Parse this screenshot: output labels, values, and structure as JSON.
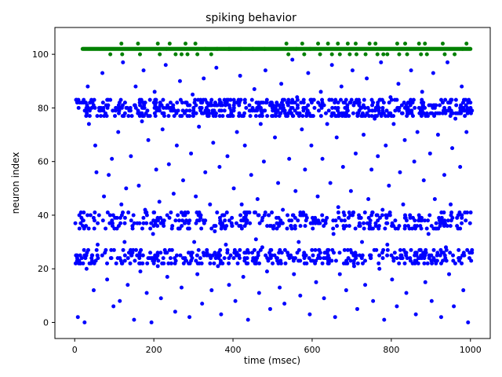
{
  "chart_data": {
    "type": "scatter",
    "title": "spiking behavior",
    "xlabel": "time (msec)",
    "ylabel": "neuron index",
    "xlim": [
      -50,
      1050
    ],
    "ylim": [
      -6,
      110
    ],
    "xticks": [
      0,
      200,
      400,
      600,
      800,
      1000
    ],
    "yticks": [
      0,
      20,
      40,
      60,
      80,
      100
    ],
    "grid": false,
    "legend": "none",
    "series": [
      {
        "color": "#0000ff",
        "marker": "circle",
        "description_points": "sampled spike events",
        "points": [
          [
            8,
            2
          ],
          [
            12,
            35
          ],
          [
            15,
            22
          ],
          [
            18,
            24
          ],
          [
            22,
            38
          ],
          [
            25,
            0
          ],
          [
            28,
            82
          ],
          [
            30,
            20
          ],
          [
            33,
            88
          ],
          [
            36,
            74
          ],
          [
            40,
            40
          ],
          [
            44,
            23
          ],
          [
            48,
            12
          ],
          [
            52,
            66
          ],
          [
            55,
            56
          ],
          [
            58,
            29
          ],
          [
            62,
            80
          ],
          [
            66,
            77
          ],
          [
            70,
            93
          ],
          [
            74,
            47
          ],
          [
            78,
            35
          ],
          [
            82,
            16
          ],
          [
            86,
            55
          ],
          [
            90,
            83
          ],
          [
            94,
            61
          ],
          [
            98,
            6
          ],
          [
            102,
            39
          ],
          [
            105,
            22
          ],
          [
            110,
            71
          ],
          [
            114,
            8
          ],
          [
            118,
            44
          ],
          [
            122,
            97
          ],
          [
            126,
            30
          ],
          [
            130,
            50
          ],
          [
            134,
            14
          ],
          [
            138,
            79
          ],
          [
            142,
            62
          ],
          [
            146,
            26
          ],
          [
            150,
            1
          ],
          [
            154,
            88
          ],
          [
            158,
            37
          ],
          [
            162,
            51
          ],
          [
            166,
            19
          ],
          [
            170,
            75
          ],
          [
            174,
            94
          ],
          [
            178,
            42
          ],
          [
            182,
            11
          ],
          [
            186,
            68
          ],
          [
            190,
            24
          ],
          [
            194,
            0
          ],
          [
            198,
            33
          ],
          [
            202,
            86
          ],
          [
            206,
            57
          ],
          [
            210,
            21
          ],
          [
            214,
            45
          ],
          [
            218,
            9
          ],
          [
            222,
            72
          ],
          [
            226,
            38
          ],
          [
            230,
            96
          ],
          [
            234,
            17
          ],
          [
            238,
            59
          ],
          [
            242,
            80
          ],
          [
            246,
            27
          ],
          [
            250,
            48
          ],
          [
            254,
            4
          ],
          [
            258,
            66
          ],
          [
            262,
            35
          ],
          [
            266,
            90
          ],
          [
            270,
            13
          ],
          [
            274,
            53
          ],
          [
            278,
            78
          ],
          [
            282,
            23
          ],
          [
            286,
            41
          ],
          [
            290,
            2
          ],
          [
            294,
            63
          ],
          [
            298,
            85
          ],
          [
            302,
            30
          ],
          [
            306,
            47
          ],
          [
            310,
            18
          ],
          [
            314,
            73
          ],
          [
            318,
            39
          ],
          [
            322,
            7
          ],
          [
            326,
            91
          ],
          [
            330,
            56
          ],
          [
            334,
            25
          ],
          [
            338,
            81
          ],
          [
            342,
            44
          ],
          [
            346,
            12
          ],
          [
            350,
            67
          ],
          [
            354,
            34
          ],
          [
            358,
            95
          ],
          [
            362,
            21
          ],
          [
            366,
            58
          ],
          [
            370,
            3
          ],
          [
            374,
            77
          ],
          [
            378,
            40
          ],
          [
            382,
            29
          ],
          [
            386,
            62
          ],
          [
            390,
            14
          ],
          [
            394,
            83
          ],
          [
            398,
            36
          ],
          [
            402,
            50
          ],
          [
            406,
            8
          ],
          [
            410,
            71
          ],
          [
            414,
            25
          ],
          [
            418,
            92
          ],
          [
            422,
            44
          ],
          [
            426,
            17
          ],
          [
            430,
            66
          ],
          [
            434,
            38
          ],
          [
            438,
            1
          ],
          [
            442,
            79
          ],
          [
            446,
            55
          ],
          [
            450,
            23
          ],
          [
            454,
            87
          ],
          [
            458,
            31
          ],
          [
            462,
            46
          ],
          [
            466,
            11
          ],
          [
            470,
            74
          ],
          [
            474,
            28
          ],
          [
            478,
            60
          ],
          [
            482,
            94
          ],
          [
            486,
            19
          ],
          [
            490,
            40
          ],
          [
            494,
            5
          ],
          [
            498,
            82
          ],
          [
            502,
            35
          ],
          [
            506,
            69
          ],
          [
            510,
            24
          ],
          [
            514,
            52
          ],
          [
            518,
            13
          ],
          [
            522,
            89
          ],
          [
            526,
            42
          ],
          [
            530,
            7
          ],
          [
            534,
            77
          ],
          [
            538,
            26
          ],
          [
            542,
            61
          ],
          [
            546,
            36
          ],
          [
            550,
            98
          ],
          [
            554,
            18
          ],
          [
            558,
            49
          ],
          [
            562,
            84
          ],
          [
            566,
            30
          ],
          [
            570,
            10
          ],
          [
            574,
            72
          ],
          [
            578,
            40
          ],
          [
            582,
            57
          ],
          [
            586,
            22
          ],
          [
            590,
            93
          ],
          [
            594,
            3
          ],
          [
            598,
            66
          ],
          [
            602,
            37
          ],
          [
            606,
            80
          ],
          [
            610,
            15
          ],
          [
            614,
            47
          ],
          [
            618,
            27
          ],
          [
            622,
            86
          ],
          [
            626,
            61
          ],
          [
            630,
            9
          ],
          [
            634,
            38
          ],
          [
            638,
            74
          ],
          [
            642,
            24
          ],
          [
            646,
            52
          ],
          [
            650,
            96
          ],
          [
            654,
            33
          ],
          [
            658,
            2
          ],
          [
            662,
            69
          ],
          [
            666,
            43
          ],
          [
            670,
            18
          ],
          [
            674,
            88
          ],
          [
            678,
            58
          ],
          [
            682,
            27
          ],
          [
            686,
            12
          ],
          [
            690,
            79
          ],
          [
            694,
            36
          ],
          [
            698,
            49
          ],
          [
            702,
            94
          ],
          [
            706,
            21
          ],
          [
            710,
            63
          ],
          [
            714,
            5
          ],
          [
            718,
            83
          ],
          [
            722,
            39
          ],
          [
            726,
            30
          ],
          [
            730,
            70
          ],
          [
            734,
            14
          ],
          [
            738,
            91
          ],
          [
            742,
            46
          ],
          [
            746,
            25
          ],
          [
            750,
            57
          ],
          [
            754,
            8
          ],
          [
            758,
            76
          ],
          [
            762,
            36
          ],
          [
            766,
            62
          ],
          [
            770,
            20
          ],
          [
            774,
            97
          ],
          [
            778,
            42
          ],
          [
            782,
            1
          ],
          [
            786,
            66
          ],
          [
            790,
            29
          ],
          [
            794,
            51
          ],
          [
            798,
            84
          ],
          [
            802,
            16
          ],
          [
            806,
            74
          ],
          [
            810,
            38
          ],
          [
            814,
            6
          ],
          [
            818,
            89
          ],
          [
            822,
            56
          ],
          [
            826,
            25
          ],
          [
            830,
            44
          ],
          [
            834,
            68
          ],
          [
            838,
            11
          ],
          [
            842,
            80
          ],
          [
            846,
            35
          ],
          [
            850,
            94
          ],
          [
            854,
            22
          ],
          [
            858,
            60
          ],
          [
            862,
            3
          ],
          [
            866,
            71
          ],
          [
            870,
            40
          ],
          [
            874,
            27
          ],
          [
            878,
            86
          ],
          [
            882,
            53
          ],
          [
            886,
            15
          ],
          [
            890,
            78
          ],
          [
            894,
            33
          ],
          [
            898,
            63
          ],
          [
            902,
            8
          ],
          [
            906,
            93
          ],
          [
            910,
            46
          ],
          [
            914,
            23
          ],
          [
            918,
            70
          ],
          [
            922,
            38
          ],
          [
            926,
            2
          ],
          [
            930,
            82
          ],
          [
            934,
            55
          ],
          [
            938,
            28
          ],
          [
            942,
            97
          ],
          [
            946,
            18
          ],
          [
            950,
            44
          ],
          [
            954,
            65
          ],
          [
            958,
            6
          ],
          [
            962,
            76
          ],
          [
            966,
            36
          ],
          [
            970,
            24
          ],
          [
            974,
            58
          ],
          [
            978,
            88
          ],
          [
            982,
            12
          ],
          [
            986,
            41
          ],
          [
            990,
            71
          ],
          [
            994,
            0
          ],
          [
            998,
            26
          ],
          [
            1000,
            82
          ]
        ]
      },
      {
        "color": "#008000",
        "marker": "circle",
        "line_y": 102,
        "line_range": [
          20,
          1000
        ],
        "points": [
          [
            90,
            100
          ],
          [
            118,
            104
          ],
          [
            120,
            100
          ],
          [
            160,
            104
          ],
          [
            165,
            100
          ],
          [
            210,
            104
          ],
          [
            215,
            100
          ],
          [
            232,
            102
          ],
          [
            240,
            104
          ],
          [
            255,
            100
          ],
          [
            270,
            100
          ],
          [
            280,
            104
          ],
          [
            285,
            100
          ],
          [
            305,
            104
          ],
          [
            310,
            100
          ],
          [
            330,
            102
          ],
          [
            345,
            100
          ],
          [
            360,
            102
          ],
          [
            390,
            102
          ],
          [
            420,
            102
          ],
          [
            450,
            102
          ],
          [
            480,
            102
          ],
          [
            535,
            104
          ],
          [
            540,
            100
          ],
          [
            560,
            102
          ],
          [
            575,
            104
          ],
          [
            580,
            100
          ],
          [
            595,
            102
          ],
          [
            615,
            104
          ],
          [
            620,
            100
          ],
          [
            640,
            104
          ],
          [
            650,
            100
          ],
          [
            665,
            104
          ],
          [
            670,
            100
          ],
          [
            690,
            104
          ],
          [
            695,
            100
          ],
          [
            710,
            104
          ],
          [
            712,
            100
          ],
          [
            735,
            100
          ],
          [
            745,
            104
          ],
          [
            760,
            104
          ],
          [
            765,
            100
          ],
          [
            780,
            100
          ],
          [
            790,
            100
          ],
          [
            815,
            104
          ],
          [
            820,
            100
          ],
          [
            835,
            104
          ],
          [
            840,
            100
          ],
          [
            870,
            104
          ],
          [
            875,
            100
          ],
          [
            885,
            104
          ],
          [
            890,
            100
          ],
          [
            930,
            104
          ],
          [
            935,
            100
          ],
          [
            960,
            100
          ],
          [
            980,
            102
          ],
          [
            990,
            104
          ]
        ]
      }
    ],
    "bands": [
      {
        "neurons": [
          77,
          83
        ],
        "density": 0.6
      },
      {
        "neurons": [
          35,
          41
        ],
        "density": 0.35
      },
      {
        "neurons": [
          22,
          27
        ],
        "density": 0.45
      }
    ]
  }
}
